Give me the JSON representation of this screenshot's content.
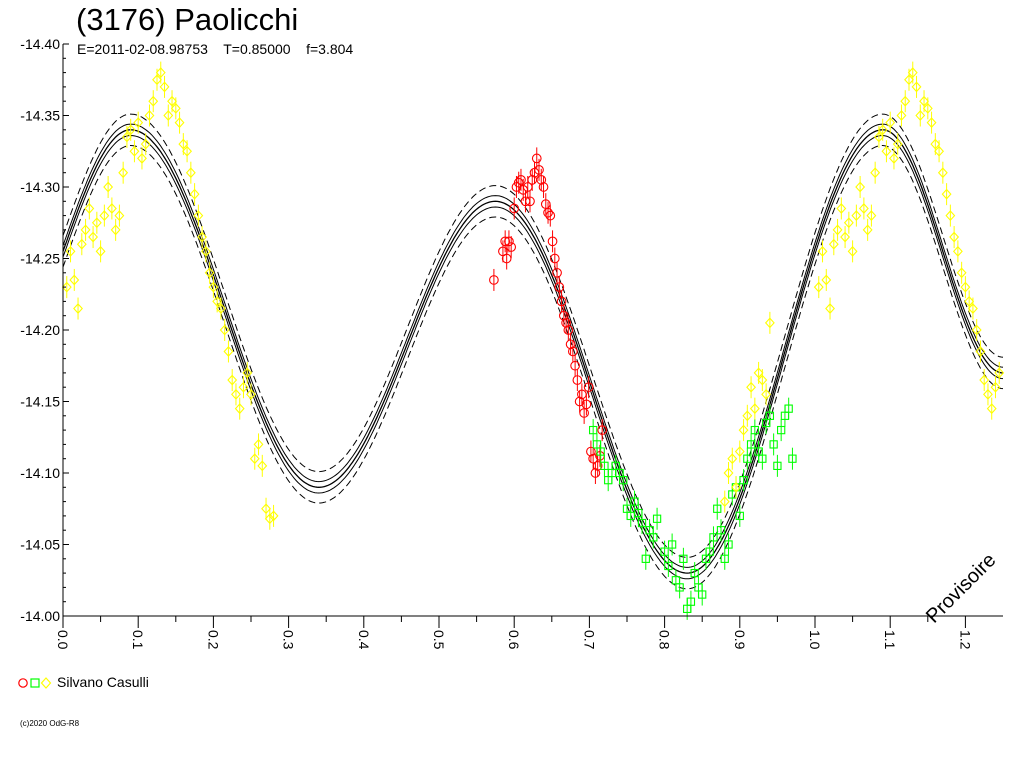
{
  "header": {
    "title": "(3176) Paolicchi",
    "subtitle": "E=2011-02-08.98753    T=0.85000    f=3.804"
  },
  "legend": {
    "label": "Silvano Casulli"
  },
  "watermark": "Provisoire",
  "copyright": "(c)2020 OdG-R8",
  "colors": {
    "red": "#ff0000",
    "green": "#00ff00",
    "yellow": "#ffff00",
    "curve": "#000000"
  },
  "chart_data": {
    "type": "scatter",
    "title": "(3176) Paolicchi",
    "xlabel": "",
    "ylabel": "",
    "xlim": [
      0.0,
      1.25
    ],
    "ylim": [
      -14.4,
      -14.0
    ],
    "y_inverted": true,
    "x_ticks": [
      0.0,
      0.1,
      0.2,
      0.3,
      0.4,
      0.5,
      0.6,
      0.7,
      0.8,
      0.9,
      1.0,
      1.1,
      1.2
    ],
    "x_tick_labels": [
      "0.0",
      "0.1",
      "0.2",
      "0.3",
      "0.4",
      "0.5",
      "0.6",
      "0.7",
      "0.8",
      "0.9",
      "1.0",
      "1.1",
      "1.2"
    ],
    "y_ticks": [
      -14.4,
      -14.35,
      -14.3,
      -14.25,
      -14.2,
      -14.15,
      -14.1,
      -14.05,
      -14.0
    ],
    "y_tick_labels": [
      "-14.40",
      "-14.35",
      "-14.30",
      "-14.25",
      "-14.20",
      "-14.15",
      "-14.10",
      "-14.05",
      "-14.00"
    ],
    "fit_curve": {
      "knots_x": [
        0.0,
        0.09,
        0.34,
        0.575,
        0.83,
        1.09,
        1.25
      ],
      "knots_y": [
        -14.255,
        -14.34,
        -14.09,
        -14.29,
        -14.03,
        -14.34,
        -14.17
      ],
      "band_half_widths": [
        0.004,
        0.011
      ]
    },
    "series": [
      {
        "color": "red",
        "marker": "circle",
        "points": [
          [
            0.573,
            -14.235
          ],
          [
            0.585,
            -14.255
          ],
          [
            0.588,
            -14.262
          ],
          [
            0.59,
            -14.25
          ],
          [
            0.593,
            -14.262
          ],
          [
            0.596,
            -14.258
          ],
          [
            0.6,
            -14.285
          ],
          [
            0.603,
            -14.3
          ],
          [
            0.606,
            -14.303
          ],
          [
            0.609,
            -14.305
          ],
          [
            0.612,
            -14.298
          ],
          [
            0.615,
            -14.29
          ],
          [
            0.618,
            -14.3
          ],
          [
            0.621,
            -14.29
          ],
          [
            0.624,
            -14.305
          ],
          [
            0.627,
            -14.31
          ],
          [
            0.63,
            -14.32
          ],
          [
            0.633,
            -14.312
          ],
          [
            0.636,
            -14.305
          ],
          [
            0.639,
            -14.3
          ],
          [
            0.642,
            -14.288
          ],
          [
            0.645,
            -14.282
          ],
          [
            0.648,
            -14.28
          ],
          [
            0.651,
            -14.262
          ],
          [
            0.654,
            -14.25
          ],
          [
            0.657,
            -14.24
          ],
          [
            0.66,
            -14.23
          ],
          [
            0.663,
            -14.22
          ],
          [
            0.666,
            -14.21
          ],
          [
            0.669,
            -14.205
          ],
          [
            0.672,
            -14.2
          ],
          [
            0.675,
            -14.19
          ],
          [
            0.678,
            -14.185
          ],
          [
            0.681,
            -14.175
          ],
          [
            0.684,
            -14.165
          ],
          [
            0.687,
            -14.15
          ],
          [
            0.69,
            -14.155
          ],
          [
            0.693,
            -14.142
          ],
          [
            0.696,
            -14.148
          ],
          [
            0.699,
            -14.16
          ],
          [
            0.702,
            -14.115
          ],
          [
            0.705,
            -14.11
          ],
          [
            0.708,
            -14.1
          ],
          [
            0.711,
            -14.105
          ],
          [
            0.714,
            -14.112
          ],
          [
            0.717,
            -14.13
          ]
        ]
      },
      {
        "color": "green",
        "marker": "square",
        "points": [
          [
            0.705,
            -14.13
          ],
          [
            0.71,
            -14.12
          ],
          [
            0.715,
            -14.115
          ],
          [
            0.72,
            -14.105
          ],
          [
            0.725,
            -14.095
          ],
          [
            0.73,
            -14.1
          ],
          [
            0.735,
            -14.105
          ],
          [
            0.74,
            -14.1
          ],
          [
            0.745,
            -14.095
          ],
          [
            0.75,
            -14.075
          ],
          [
            0.755,
            -14.07
          ],
          [
            0.76,
            -14.08
          ],
          [
            0.765,
            -14.072
          ],
          [
            0.77,
            -14.065
          ],
          [
            0.775,
            -14.04
          ],
          [
            0.78,
            -14.06
          ],
          [
            0.785,
            -14.055
          ],
          [
            0.79,
            -14.068
          ],
          [
            0.8,
            -14.045
          ],
          [
            0.805,
            -14.035
          ],
          [
            0.81,
            -14.05
          ],
          [
            0.815,
            -14.025
          ],
          [
            0.82,
            -14.02
          ],
          [
            0.825,
            -14.04
          ],
          [
            0.83,
            -14.005
          ],
          [
            0.835,
            -14.01
          ],
          [
            0.84,
            -14.03
          ],
          [
            0.845,
            -14.02
          ],
          [
            0.85,
            -14.015
          ],
          [
            0.855,
            -14.04
          ],
          [
            0.86,
            -14.045
          ],
          [
            0.865,
            -14.055
          ],
          [
            0.87,
            -14.075
          ],
          [
            0.875,
            -14.06
          ],
          [
            0.88,
            -14.04
          ],
          [
            0.885,
            -14.05
          ],
          [
            0.89,
            -14.085
          ],
          [
            0.895,
            -14.09
          ],
          [
            0.9,
            -14.07
          ],
          [
            0.905,
            -14.095
          ],
          [
            0.91,
            -14.11
          ],
          [
            0.915,
            -14.12
          ],
          [
            0.92,
            -14.13
          ],
          [
            0.925,
            -14.115
          ],
          [
            0.93,
            -14.11
          ],
          [
            0.935,
            -14.135
          ],
          [
            0.94,
            -14.14
          ],
          [
            0.945,
            -14.12
          ],
          [
            0.95,
            -14.105
          ],
          [
            0.955,
            -14.13
          ],
          [
            0.96,
            -14.14
          ],
          [
            0.965,
            -14.145
          ],
          [
            0.97,
            -14.11
          ]
        ]
      },
      {
        "color": "yellow",
        "marker": "diamond",
        "points": [
          [
            0.005,
            -14.23
          ],
          [
            0.01,
            -14.255
          ],
          [
            0.015,
            -14.235
          ],
          [
            0.02,
            -14.215
          ],
          [
            0.025,
            -14.26
          ],
          [
            0.03,
            -14.27
          ],
          [
            0.035,
            -14.285
          ],
          [
            0.04,
            -14.265
          ],
          [
            0.045,
            -14.275
          ],
          [
            0.05,
            -14.255
          ],
          [
            0.055,
            -14.28
          ],
          [
            0.06,
            -14.3
          ],
          [
            0.065,
            -14.285
          ],
          [
            0.07,
            -14.27
          ],
          [
            0.075,
            -14.28
          ],
          [
            0.08,
            -14.31
          ],
          [
            0.085,
            -14.335
          ],
          [
            0.09,
            -14.34
          ],
          [
            0.095,
            -14.325
          ],
          [
            0.1,
            -14.345
          ],
          [
            0.105,
            -14.32
          ],
          [
            0.11,
            -14.33
          ],
          [
            0.115,
            -14.35
          ],
          [
            0.12,
            -14.36
          ],
          [
            0.125,
            -14.375
          ],
          [
            0.13,
            -14.38
          ],
          [
            0.135,
            -14.37
          ],
          [
            0.14,
            -14.35
          ],
          [
            0.145,
            -14.36
          ],
          [
            0.15,
            -14.355
          ],
          [
            0.155,
            -14.345
          ],
          [
            0.16,
            -14.33
          ],
          [
            0.165,
            -14.325
          ],
          [
            0.17,
            -14.31
          ],
          [
            0.175,
            -14.295
          ],
          [
            0.18,
            -14.28
          ],
          [
            0.185,
            -14.265
          ],
          [
            0.19,
            -14.255
          ],
          [
            0.195,
            -14.24
          ],
          [
            0.2,
            -14.23
          ],
          [
            0.205,
            -14.22
          ],
          [
            0.21,
            -14.215
          ],
          [
            0.215,
            -14.2
          ],
          [
            0.22,
            -14.185
          ],
          [
            0.225,
            -14.165
          ],
          [
            0.23,
            -14.155
          ],
          [
            0.235,
            -14.145
          ],
          [
            0.24,
            -14.16
          ],
          [
            0.245,
            -14.17
          ],
          [
            0.25,
            -14.155
          ],
          [
            0.255,
            -14.11
          ],
          [
            0.26,
            -14.12
          ],
          [
            0.265,
            -14.105
          ],
          [
            0.27,
            -14.075
          ],
          [
            0.275,
            -14.068
          ],
          [
            0.28,
            -14.07
          ],
          [
            0.88,
            -14.08
          ],
          [
            0.885,
            -14.1
          ],
          [
            0.89,
            -14.11
          ],
          [
            0.895,
            -14.09
          ],
          [
            0.9,
            -14.115
          ],
          [
            0.905,
            -14.13
          ],
          [
            0.91,
            -14.14
          ],
          [
            0.915,
            -14.16
          ],
          [
            0.92,
            -14.145
          ],
          [
            0.925,
            -14.17
          ],
          [
            0.93,
            -14.165
          ],
          [
            0.935,
            -14.155
          ],
          [
            0.94,
            -14.205
          ],
          [
            1.005,
            -14.23
          ],
          [
            1.01,
            -14.255
          ],
          [
            1.015,
            -14.235
          ],
          [
            1.02,
            -14.215
          ],
          [
            1.025,
            -14.26
          ],
          [
            1.03,
            -14.27
          ],
          [
            1.035,
            -14.285
          ],
          [
            1.04,
            -14.265
          ],
          [
            1.045,
            -14.275
          ],
          [
            1.05,
            -14.255
          ],
          [
            1.055,
            -14.28
          ],
          [
            1.06,
            -14.3
          ],
          [
            1.065,
            -14.285
          ],
          [
            1.07,
            -14.27
          ],
          [
            1.075,
            -14.28
          ],
          [
            1.08,
            -14.31
          ],
          [
            1.085,
            -14.335
          ],
          [
            1.09,
            -14.34
          ],
          [
            1.095,
            -14.325
          ],
          [
            1.1,
            -14.345
          ],
          [
            1.105,
            -14.32
          ],
          [
            1.11,
            -14.33
          ],
          [
            1.115,
            -14.35
          ],
          [
            1.12,
            -14.36
          ],
          [
            1.125,
            -14.375
          ],
          [
            1.13,
            -14.38
          ],
          [
            1.135,
            -14.37
          ],
          [
            1.14,
            -14.35
          ],
          [
            1.145,
            -14.36
          ],
          [
            1.15,
            -14.355
          ],
          [
            1.155,
            -14.345
          ],
          [
            1.16,
            -14.33
          ],
          [
            1.165,
            -14.325
          ],
          [
            1.17,
            -14.31
          ],
          [
            1.175,
            -14.295
          ],
          [
            1.18,
            -14.28
          ],
          [
            1.185,
            -14.265
          ],
          [
            1.19,
            -14.255
          ],
          [
            1.195,
            -14.24
          ],
          [
            1.2,
            -14.23
          ],
          [
            1.205,
            -14.22
          ],
          [
            1.21,
            -14.215
          ],
          [
            1.215,
            -14.2
          ],
          [
            1.22,
            -14.185
          ],
          [
            1.225,
            -14.165
          ],
          [
            1.23,
            -14.155
          ],
          [
            1.235,
            -14.145
          ],
          [
            1.24,
            -14.16
          ],
          [
            1.245,
            -14.17
          ]
        ]
      }
    ],
    "grid": false,
    "legend_position": "bottom-left"
  }
}
